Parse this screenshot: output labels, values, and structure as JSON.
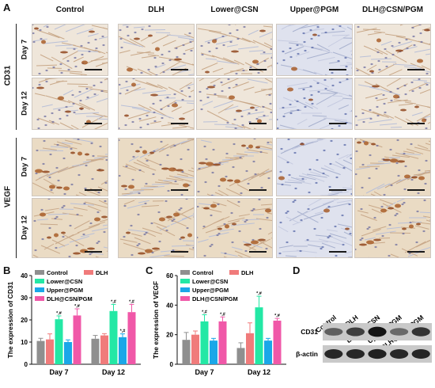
{
  "panels": {
    "a": "A",
    "b": "B",
    "c": "C",
    "d": "D"
  },
  "ihc": {
    "columns": [
      "Control",
      "DLH",
      "Lower@CSN",
      "Upper@PGM",
      "DLH@CSN/PGM"
    ],
    "groups": [
      {
        "name": "CD31",
        "rows": [
          "Day 7",
          "Day 12"
        ]
      },
      {
        "name": "VEGF",
        "rows": [
          "Day 7",
          "Day 12"
        ]
      }
    ]
  },
  "chart_data": [
    {
      "type": "bar",
      "ylabel": "The expression of CD31",
      "ylim": [
        0,
        40
      ],
      "yticks": [
        0,
        10,
        20,
        30,
        40
      ],
      "categories": [
        "Day 7",
        "Day 12"
      ],
      "series": [
        {
          "name": "Control",
          "values": [
            10.5,
            11.5
          ],
          "errors": [
            1.2,
            1.5
          ],
          "color": "#8f8f8f"
        },
        {
          "name": "DLH",
          "values": [
            11.2,
            13.0
          ],
          "errors": [
            2.5,
            0.8
          ],
          "color": "#f07b7b"
        },
        {
          "name": "Lower@CSN",
          "values": [
            20.3,
            24.0
          ],
          "errors": [
            1.5,
            3.0
          ],
          "color": "#23e8a5"
        },
        {
          "name": "Upper@PGM",
          "values": [
            10.0,
            12.2
          ],
          "errors": [
            1.0,
            1.5
          ],
          "color": "#1aa7e8"
        },
        {
          "name": "DLH@CSN/PGM",
          "values": [
            22.0,
            23.5
          ],
          "errors": [
            3.0,
            3.5
          ],
          "color": "#f058a8"
        }
      ],
      "annotations": [
        {
          "category": 0,
          "series": 2,
          "text": "*,#"
        },
        {
          "category": 0,
          "series": 4,
          "text": "*,#"
        },
        {
          "category": 1,
          "series": 2,
          "text": "*,#"
        },
        {
          "category": 1,
          "series": 3,
          "text": "*,#"
        },
        {
          "category": 1,
          "series": 4,
          "text": "*,#"
        }
      ],
      "legend": "top-left"
    },
    {
      "type": "bar",
      "ylabel": "The expression of VEGF",
      "ylim": [
        0,
        60
      ],
      "yticks": [
        0,
        20,
        40,
        60
      ],
      "categories": [
        "Day 7",
        "Day 12"
      ],
      "series": [
        {
          "name": "Control",
          "values": [
            16.5,
            11.0
          ],
          "errors": [
            5.0,
            3.5
          ],
          "color": "#8f8f8f"
        },
        {
          "name": "DLH",
          "values": [
            20.0,
            21.0
          ],
          "errors": [
            2.5,
            7.0
          ],
          "color": "#f07b7b"
        },
        {
          "name": "Lower@CSN",
          "values": [
            29.0,
            38.5
          ],
          "errors": [
            4.5,
            7.5
          ],
          "color": "#23e8a5"
        },
        {
          "name": "Upper@PGM",
          "values": [
            16.0,
            16.0
          ],
          "errors": [
            1.5,
            1.5
          ],
          "color": "#1aa7e8"
        },
        {
          "name": "DLH@CSN/PGM",
          "values": [
            29.0,
            29.5
          ],
          "errors": [
            3.0,
            1.5
          ],
          "color": "#f058a8"
        }
      ],
      "annotations": [
        {
          "category": 0,
          "series": 2,
          "text": "*,#"
        },
        {
          "category": 0,
          "series": 4,
          "text": "*,#"
        },
        {
          "category": 1,
          "series": 2,
          "text": "*,#"
        },
        {
          "category": 1,
          "series": 4,
          "text": "*,#"
        }
      ],
      "legend": "top-left"
    }
  ],
  "blot": {
    "lanes": [
      "Control",
      "DLH",
      "Lower@CSN",
      "Upper@PGM",
      "DLH@CSN/PGM"
    ],
    "rows": [
      {
        "label": "CD31",
        "intensity": [
          0.55,
          0.72,
          0.95,
          0.5,
          0.78
        ]
      },
      {
        "label": "β-actin",
        "intensity": [
          0.85,
          0.85,
          0.88,
          0.85,
          0.86
        ]
      }
    ]
  }
}
